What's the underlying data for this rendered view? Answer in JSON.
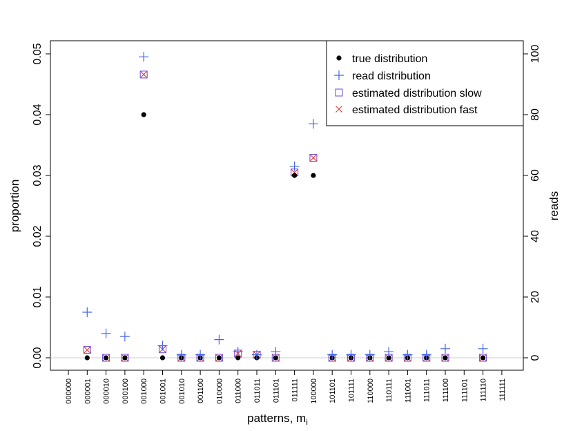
{
  "chart_data": {
    "type": "scatter",
    "xlabel": "patterns, m",
    "xlabel_subscript": "i",
    "ylabel_left": "proportion",
    "ylabel_right": "reads",
    "ylim_left": [
      0,
      0.05
    ],
    "ylim_right": [
      0,
      100
    ],
    "yticks_left": [
      "0.00",
      "0.01",
      "0.02",
      "0.03",
      "0.04",
      "0.05"
    ],
    "yticks_right": [
      "0",
      "20",
      "40",
      "60",
      "80",
      "100"
    ],
    "categories": [
      "000000",
      "000001",
      "000010",
      "000100",
      "001000",
      "001001",
      "001010",
      "001100",
      "010000",
      "011000",
      "011011",
      "011101",
      "011111",
      "100000",
      "101101",
      "101111",
      "110000",
      "110111",
      "111001",
      "111011",
      "111100",
      "111101",
      "111110",
      "111111"
    ],
    "legend": {
      "position": "top-right",
      "entries": [
        "true distribution",
        "read distribution",
        "estimated distribution slow",
        "estimated distribution fast"
      ]
    },
    "colors": {
      "true": "#000000",
      "read": "#4466ee",
      "slow": "#7755dd",
      "fast": "#ee3333",
      "zero_line": "#cccccc"
    },
    "series": [
      {
        "name": "true distribution",
        "marker": "dot",
        "values": [
          null,
          0,
          0,
          0,
          0.04,
          0,
          0,
          0,
          0,
          0,
          0,
          0,
          0.03,
          0.03,
          0,
          0,
          0,
          0,
          0,
          0,
          0,
          null,
          0,
          null
        ]
      },
      {
        "name": "read distribution",
        "marker": "plus",
        "values": [
          null,
          0.0075,
          0.004,
          0.0035,
          0.0495,
          0.002,
          0.0005,
          0.0005,
          0.003,
          0.001,
          0.0005,
          0.001,
          0.0315,
          0.0385,
          0.0005,
          0.0005,
          0.0005,
          0.001,
          0.0005,
          0.0005,
          0.0015,
          null,
          0.0015,
          null
        ]
      },
      {
        "name": "estimated distribution slow",
        "marker": "square",
        "values": [
          null,
          0.0013,
          0,
          0,
          0.0466,
          0.0014,
          0,
          0,
          0,
          0.0007,
          0.0005,
          0,
          0.0305,
          0.0329,
          0,
          0,
          0,
          0,
          0,
          0,
          0,
          null,
          0,
          null
        ]
      },
      {
        "name": "estimated distribution fast",
        "marker": "x",
        "values": [
          null,
          0.0013,
          0,
          0,
          0.0466,
          0.0014,
          0,
          0,
          0,
          0.0007,
          0.0005,
          0,
          0.0305,
          0.0329,
          0,
          0,
          0,
          0,
          0,
          0,
          0,
          null,
          0,
          null
        ]
      }
    ]
  }
}
